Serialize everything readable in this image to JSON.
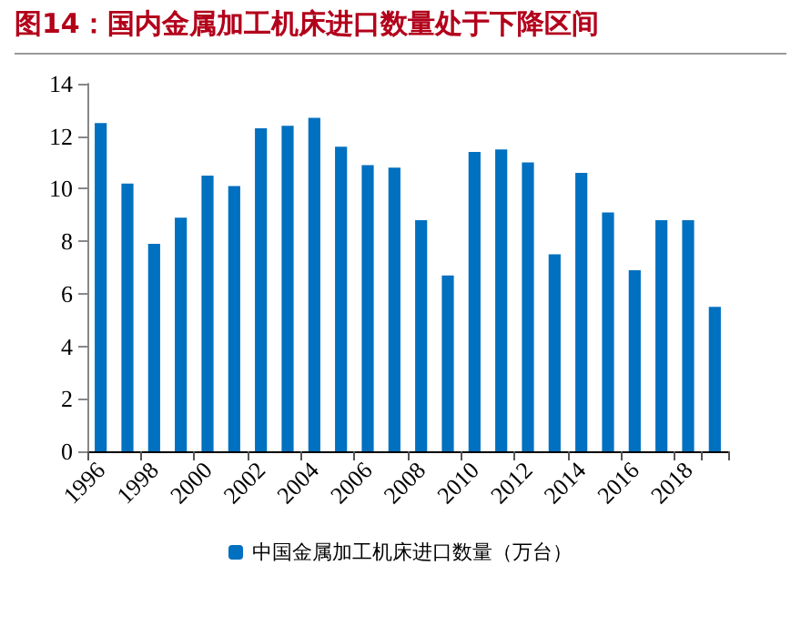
{
  "chart_data": {
    "type": "bar",
    "title": "图14：国内金属加工机床进口数量处于下降区间",
    "categories": [
      "1996",
      null,
      "1998",
      null,
      "2000",
      null,
      "2002",
      null,
      "2004",
      null,
      "2006",
      null,
      "2008",
      null,
      "2010",
      null,
      "2012",
      null,
      "2014",
      null,
      "2016",
      null,
      "2018",
      null
    ],
    "series": [
      {
        "name": "中国金属加工机床进口数量（万台）",
        "color": "#0070c0",
        "values": [
          12.5,
          10.2,
          7.9,
          8.9,
          10.5,
          10.1,
          12.3,
          12.4,
          12.7,
          11.6,
          10.9,
          10.8,
          8.8,
          6.7,
          11.4,
          11.5,
          11.0,
          7.5,
          10.6,
          9.1,
          6.9,
          8.8,
          8.8,
          5.5
        ]
      }
    ],
    "ylim": [
      0,
      14
    ],
    "yticks": [
      0,
      2,
      4,
      6,
      8,
      10,
      12,
      14
    ],
    "grid": false,
    "legend": "bottom"
  }
}
